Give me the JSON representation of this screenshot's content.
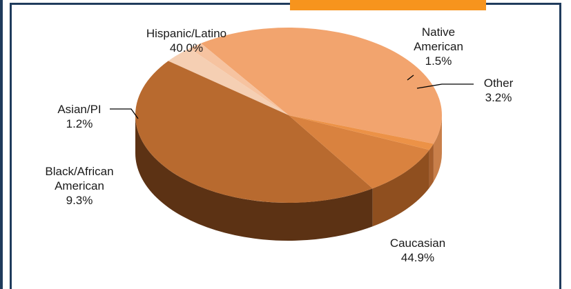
{
  "colors": {
    "frame": "#1f3b5c",
    "banner": "#f7941d"
  },
  "chart_data": {
    "type": "pie",
    "title": "",
    "style": "3d",
    "slices": [
      {
        "label": "Hispanic/Latino",
        "value": 40.0,
        "pct_label": "40.0%",
        "color": "#f2a46e",
        "side": "#c97f4a"
      },
      {
        "label": "Native American",
        "value": 1.5,
        "pct_label": "1.5%",
        "color": "#f6c3a0",
        "side": "#d9a07a"
      },
      {
        "label": "Other",
        "value": 3.2,
        "pct_label": "3.2%",
        "color": "#f5cfb3",
        "side": "#d8ab8b"
      },
      {
        "label": "Caucasian",
        "value": 44.9,
        "pct_label": "44.9%",
        "color": "#b86a2f",
        "side": "#5c3214"
      },
      {
        "label": "Black/African American",
        "value": 9.3,
        "pct_label": "9.3%",
        "color": "#d9823f",
        "side": "#8f4f1f"
      },
      {
        "label": "Asian/PI",
        "value": 1.2,
        "pct_label": "1.2%",
        "color": "#ec9247",
        "side": "#a65e2c"
      }
    ]
  },
  "labels": {
    "hispanic": {
      "name": "Hispanic/Latino",
      "pct": "40.0%"
    },
    "native": {
      "line1": "Native",
      "line2": "American",
      "pct": "1.5%"
    },
    "other": {
      "name": "Other",
      "pct": "3.2%"
    },
    "caucasian": {
      "name": "Caucasian",
      "pct": "44.9%"
    },
    "black": {
      "line1": "Black/African",
      "line2": "American",
      "pct": "9.3%"
    },
    "asian": {
      "name": "Asian/PI",
      "pct": "1.2%"
    }
  }
}
